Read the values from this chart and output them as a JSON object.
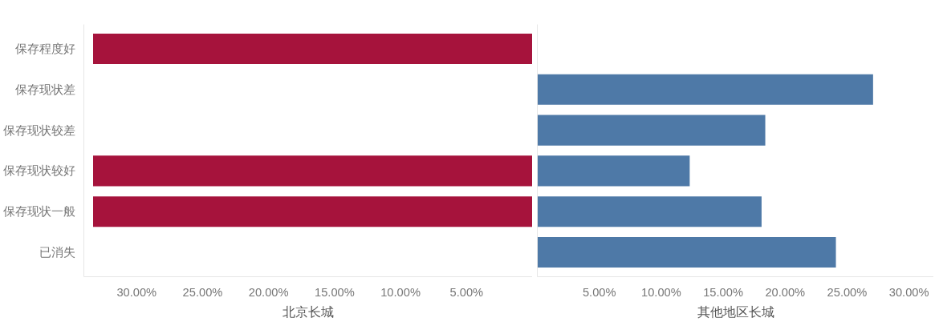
{
  "chart_data": [
    {
      "type": "bar",
      "orientation": "horizontal",
      "xlabel": "北京长城",
      "categories": [
        "保存程度好",
        "保存现状差",
        "保存现状较差",
        "保存现状较好",
        "保存现状一般",
        "已消失"
      ],
      "series": [
        {
          "color": "#a6133c",
          "values": [
            33.3,
            null,
            null,
            33.3,
            33.3,
            null
          ]
        }
      ],
      "xlim": [
        34,
        0
      ],
      "xticks": [
        {
          "value": 30,
          "label": "30.00%"
        },
        {
          "value": 25,
          "label": "25.00%"
        },
        {
          "value": 20,
          "label": "20.00%"
        },
        {
          "value": 15,
          "label": "15.00%"
        },
        {
          "value": 10,
          "label": "10.00%"
        },
        {
          "value": 5,
          "label": "5.00%"
        }
      ],
      "grid": false
    },
    {
      "type": "bar",
      "orientation": "horizontal",
      "xlabel": "其他地区长城",
      "categories": [
        null,
        null,
        null,
        null,
        null,
        null
      ],
      "series": [
        {
          "color": "#4e79a7",
          "values": [
            null,
            27.1,
            18.4,
            12.3,
            18.1,
            24.1
          ]
        }
      ],
      "xlim": [
        0,
        32
      ],
      "xticks": [
        {
          "value": 5,
          "label": "5.00%"
        },
        {
          "value": 10,
          "label": "10.00%"
        },
        {
          "value": 15,
          "label": "15.00%"
        },
        {
          "value": 20,
          "label": "20.00%"
        },
        {
          "value": 25,
          "label": "25.00%"
        },
        {
          "value": 30,
          "label": "30.00%"
        }
      ],
      "tick_labels": "x",
      "grid": false
    }
  ]
}
